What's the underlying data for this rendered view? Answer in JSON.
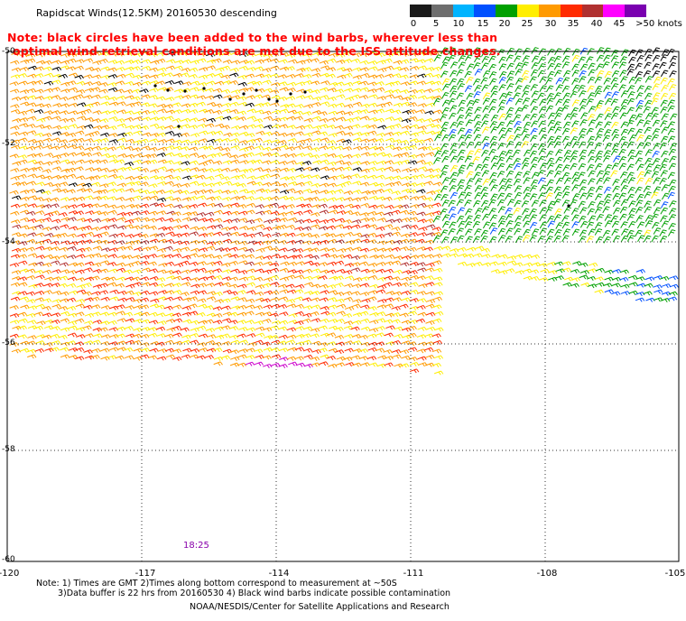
{
  "title": "Rapidscat Winds(12.5KM) 20160530 descending",
  "note_line1": "Note: black circles have been added to the wind barbs, wherever less than",
  "note_line2": "optimal wind retrieval conditions are met due to the ISS attitude changes.",
  "colorbar": {
    "labels": [
      "0",
      "5",
      "10",
      "15",
      "20",
      "25",
      "30",
      "35",
      "40",
      "45",
      ">50 knots"
    ],
    "colors": [
      "#1a1a1a",
      "#6e6e6e",
      "#00b4ff",
      "#0050ff",
      "#00a000",
      "#ffee00",
      "#ff9a00",
      "#ff2a00",
      "#b03030",
      "#ff00ff",
      "#7a00b0"
    ]
  },
  "lat_labels": [
    "-50",
    "-52",
    "-54",
    "-56",
    "-58",
    "-60"
  ],
  "lon_labels": [
    "-120",
    "-117",
    "-114",
    "-111",
    "-108",
    "-105"
  ],
  "time_label": "18:25",
  "footer_line1": "Note: 1) Times are GMT 2)Times along bottom correspond to measurement at ~50S",
  "footer_line2": "3)Data buffer is 22 hrs from 20160530 4) Black wind barbs indicate possible contamination",
  "footer_line3": "NOAA/NESDIS/Center for Satellite Applications and Research"
}
